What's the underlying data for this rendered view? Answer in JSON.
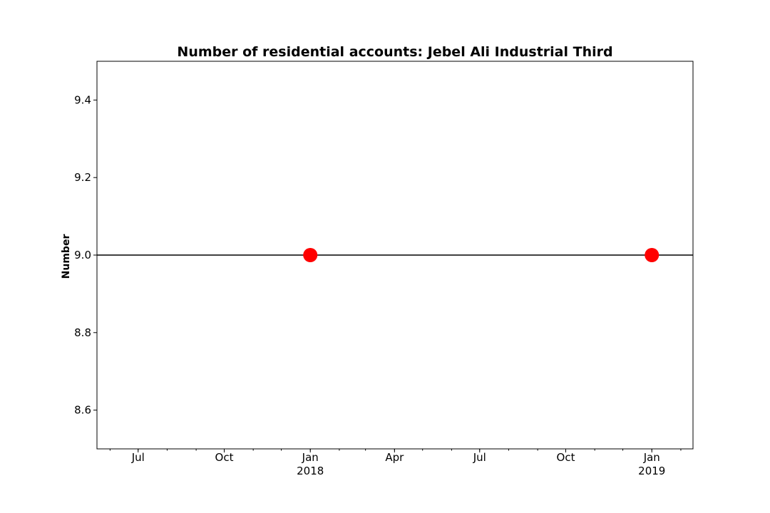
{
  "chart_data": {
    "type": "line",
    "title": "Number of residential accounts: Jebel Ali Industrial Third",
    "xlabel": "",
    "ylabel": "Number",
    "x_type": "date",
    "xlim": [
      "2017-05-18",
      "2019-02-14"
    ],
    "ylim": [
      8.5,
      9.5
    ],
    "x_ticks": [
      {
        "date": "2017-07-01",
        "label": "Jul",
        "sublabel": ""
      },
      {
        "date": "2017-10-01",
        "label": "Oct",
        "sublabel": ""
      },
      {
        "date": "2018-01-01",
        "label": "Jan",
        "sublabel": "2018"
      },
      {
        "date": "2018-04-01",
        "label": "Apr",
        "sublabel": ""
      },
      {
        "date": "2018-07-01",
        "label": "Jul",
        "sublabel": ""
      },
      {
        "date": "2018-10-01",
        "label": "Oct",
        "sublabel": ""
      },
      {
        "date": "2019-01-01",
        "label": "Jan",
        "sublabel": "2019"
      }
    ],
    "y_ticks": [
      {
        "value": 8.6,
        "label": "8.6"
      },
      {
        "value": 8.8,
        "label": "8.8"
      },
      {
        "value": 9.0,
        "label": "9.0"
      },
      {
        "value": 9.2,
        "label": "9.2"
      },
      {
        "value": 9.4,
        "label": "9.4"
      }
    ],
    "series": [
      {
        "x": [
          "2018-01-01",
          "2019-01-01"
        ],
        "y": [
          9,
          9
        ],
        "marker_color": "#ff0000"
      }
    ],
    "reference_line": {
      "y": 9.0,
      "color": "#000000"
    },
    "grid": false,
    "legend": "none"
  }
}
